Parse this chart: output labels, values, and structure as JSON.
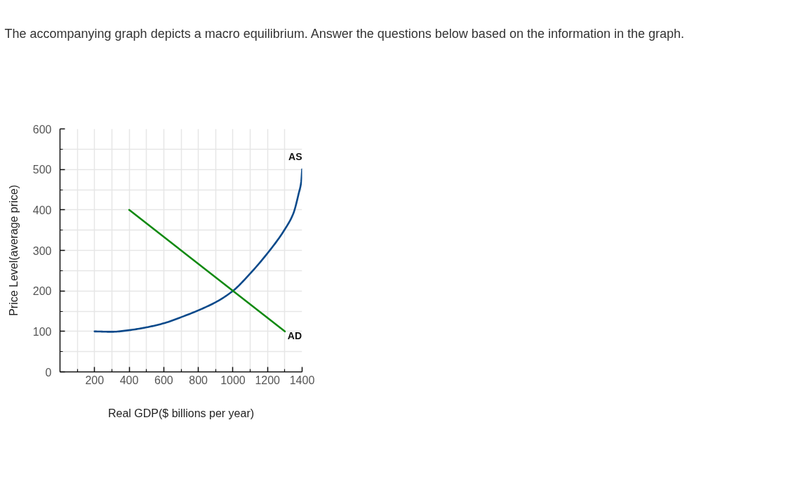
{
  "chart_data": {
    "type": "line",
    "title": "The accompanying graph depicts a macro equilibrium. Answer the questions below based on the information in the graph.",
    "xlabel": "Real GDP($ billions per year)",
    "ylabel": "Price Level(average price)",
    "xlim": [
      0,
      1400
    ],
    "ylim": [
      0,
      600
    ],
    "xticks": [
      {
        "value": 100,
        "label": null
      },
      200,
      {
        "value": 300,
        "label": null
      },
      400,
      {
        "value": 500,
        "label": null
      },
      600,
      {
        "value": 700,
        "label": null
      },
      800,
      {
        "value": 900,
        "label": null
      },
      1000,
      {
        "value": 1100,
        "label": null
      },
      1200,
      {
        "value": 1300,
        "label": null
      },
      1400
    ],
    "yticks": [
      0,
      {
        "value": 50,
        "label": null
      },
      100,
      {
        "value": 150,
        "label": null
      },
      200,
      {
        "value": 250,
        "label": null
      },
      300,
      {
        "value": 350,
        "label": null
      },
      400,
      {
        "value": 450,
        "label": null
      },
      500,
      {
        "value": 550,
        "label": null
      },
      600
    ],
    "grid": true,
    "line_style": "solid",
    "series": [
      {
        "name": "AS",
        "color": "#0b4a8b",
        "x": [
          200,
          300,
          400,
          500,
          600,
          700,
          800,
          900,
          1000,
          1100,
          1200,
          1300,
          1350,
          1380,
          1395,
          1400
        ],
        "values": [
          100,
          99,
          103,
          110,
          120,
          135,
          152,
          172,
          200,
          243,
          293,
          352,
          392,
          440,
          470,
          500
        ]
      },
      {
        "name": "AD",
        "color": "#118a11",
        "x": [
          400,
          1300
        ],
        "values": [
          400,
          100
        ]
      }
    ]
  }
}
